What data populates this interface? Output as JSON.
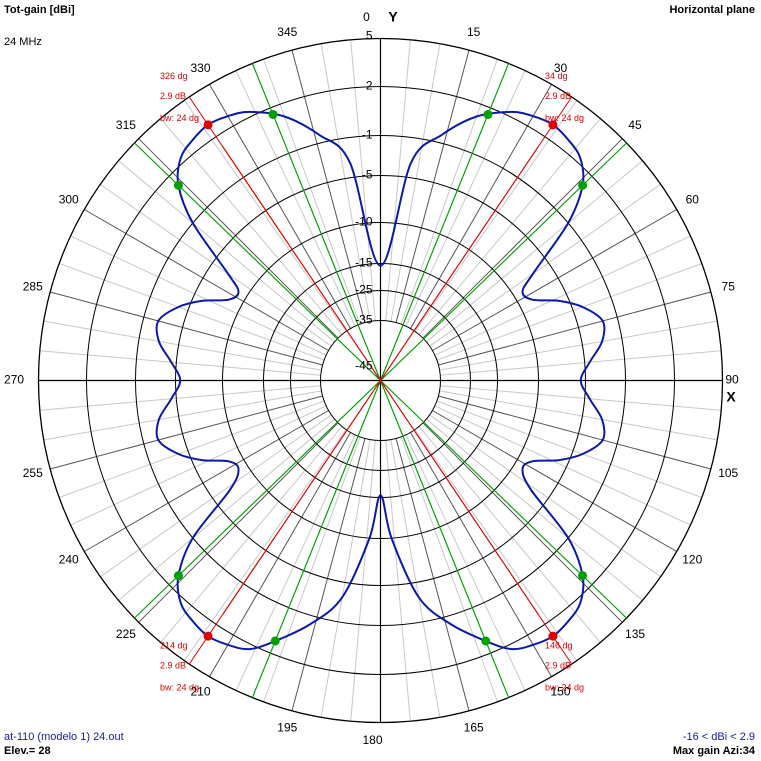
{
  "header": {
    "quantity": "Tot-gain [dBi]",
    "frequency": "24 MHz",
    "plane": "Horizontal plane"
  },
  "footer": {
    "file": "at-110 (modelo 1) 24.out",
    "elevation": "Elev.= 28",
    "range": "-16 < dBi < 2.9",
    "max_gain": "Max gain Azi:34"
  },
  "chart_data": {
    "type": "polar",
    "title": "Tot-gain [dBi]",
    "subtitle": "Horizontal plane",
    "axis_y_label": "Y",
    "axis_x_label": "X",
    "angle_ticks": [
      "0",
      "15",
      "30",
      "45",
      "60",
      "75",
      "90",
      "105",
      "120",
      "135",
      "150",
      "165",
      "180",
      "195",
      "210",
      "225",
      "240",
      "255",
      "270",
      "285",
      "300",
      "315",
      "330",
      "345"
    ],
    "radial_ticks": [
      {
        "label": "5",
        "value": 5
      },
      {
        "label": "2",
        "value": 2
      },
      {
        "label": "-1",
        "value": -1
      },
      {
        "label": "-5",
        "value": -5
      },
      {
        "label": "-10",
        "value": -10
      },
      {
        "label": "-15",
        "value": -15
      },
      {
        "label": "-25",
        "value": -25
      },
      {
        "label": "-35",
        "value": -35
      },
      {
        "label": "-45",
        "value": -45
      }
    ],
    "series": [
      {
        "color": "#0a1aa8",
        "azimuth_deg": [
          0,
          8,
          14,
          20,
          26,
          30,
          34,
          38,
          42,
          46,
          50,
          55,
          58,
          62,
          66,
          70,
          75,
          80,
          85,
          90,
          95,
          100,
          105,
          110,
          114,
          118,
          122,
          126,
          130,
          134,
          138,
          142,
          146,
          150,
          154,
          158,
          164,
          170,
          176,
          180
        ],
        "gain_dbi": [
          -15.8,
          -3.5,
          -0.5,
          1.2,
          2.3,
          2.7,
          2.9,
          2.7,
          2.3,
          1.2,
          -1,
          -7,
          -9,
          -8.5,
          -6,
          -4,
          -2.5,
          -3,
          -4.5,
          -5.5,
          -4.5,
          -3,
          -2.5,
          -4,
          -6,
          -8.5,
          -9,
          -7,
          -1,
          1.2,
          2.3,
          2.7,
          2.9,
          2.7,
          2.3,
          1.2,
          -0.5,
          -3.5,
          -10,
          -15.8
        ],
        "symmetry": "mirrored about the 0-180 axis"
      }
    ],
    "max_markers": [
      {
        "az": 34,
        "angle_label": "34 dg",
        "gain_label": "2.9 dB",
        "bw_label": "bw: 24 dg",
        "label_side": "right"
      },
      {
        "az": 146,
        "angle_label": "146 dg",
        "gain_label": "2.9 dB",
        "bw_label": "bw: 24 dg",
        "label_side": "right"
      },
      {
        "az": 214,
        "angle_label": "214 dg",
        "gain_label": "2.9 dB",
        "bw_label": "bw: 24 dg",
        "label_side": "left"
      },
      {
        "az": 326,
        "angle_label": "326 dg",
        "gain_label": "2.9 dB",
        "bw_label": "bw: 24 dg",
        "label_side": "left"
      }
    ],
    "beamwidth_points_az": [
      22,
      46,
      134,
      158,
      202,
      226,
      314,
      338
    ],
    "colors": {
      "pattern": "#0a1aa8",
      "max_line": "#e00000",
      "beamwidth_line": "#00a000",
      "grid": "#000000",
      "fine_grid": "#c8c8c8"
    }
  }
}
